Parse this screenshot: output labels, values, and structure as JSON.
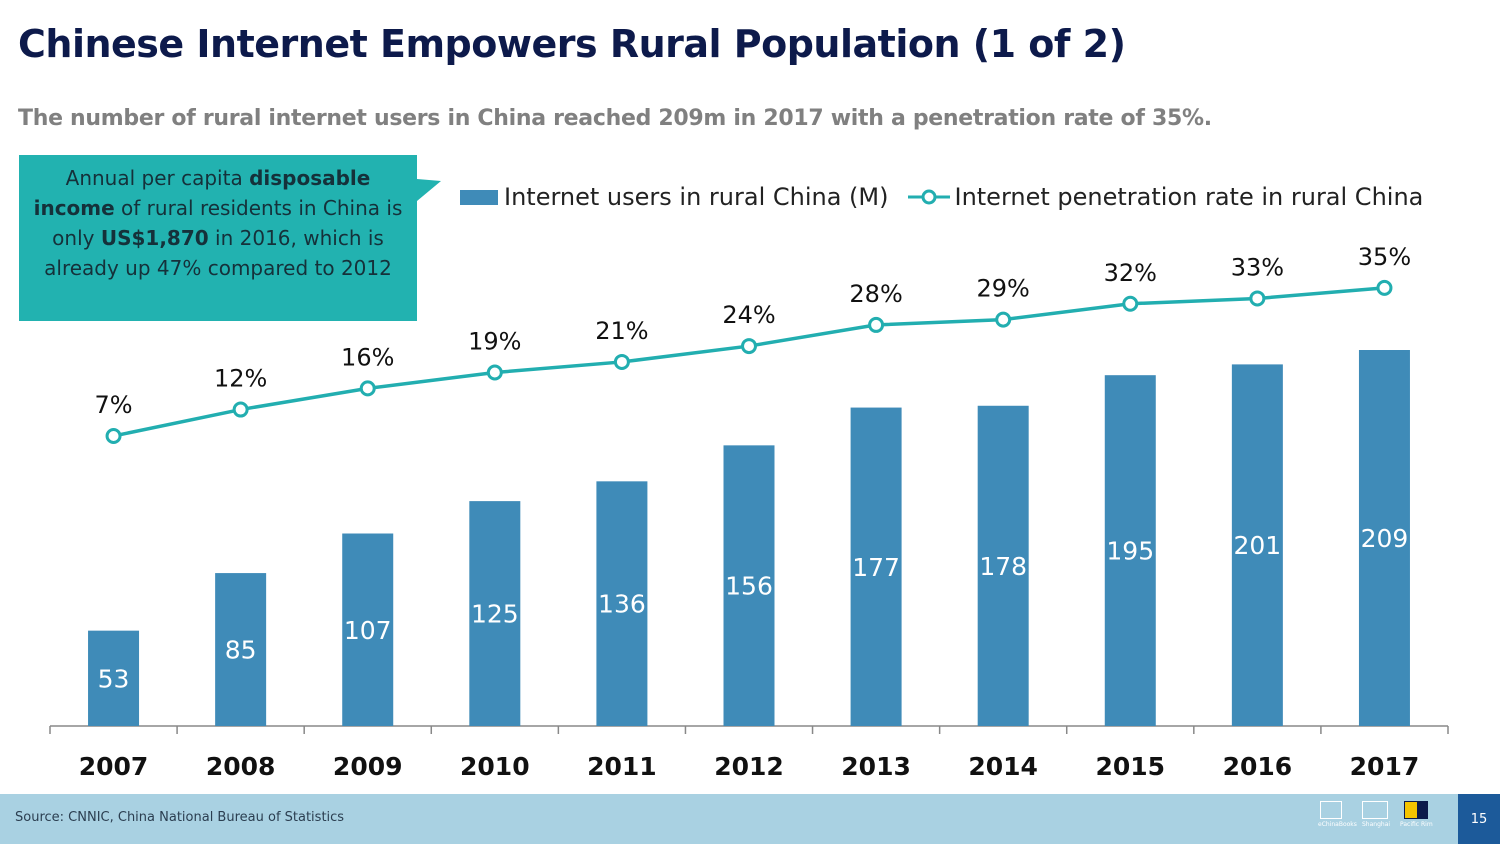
{
  "header": {
    "title": "Chinese Internet Empowers Rural Population (1 of 2)",
    "subtitle": "The number of rural internet users in China reached 209m in 2017 with a penetration rate of 35%."
  },
  "callout": {
    "part1": "Annual per capita ",
    "bold1": "disposable income",
    "part2": " of rural residents in China is only ",
    "bold2": "US$1,870",
    "part3": " in 2016, which is already up 47% compared to 2012"
  },
  "chart_data": {
    "type": "bar+line",
    "categories": [
      "2007",
      "2008",
      "2009",
      "2010",
      "2011",
      "2012",
      "2013",
      "2014",
      "2015",
      "2016",
      "2017"
    ],
    "series": [
      {
        "name": "Internet users in rural China (M)",
        "type": "bar",
        "values": [
          53,
          85,
          107,
          125,
          136,
          156,
          177,
          178,
          195,
          201,
          209
        ],
        "labels": [
          "53",
          "85",
          "107",
          "125",
          "136",
          "156",
          "177",
          "178",
          "195",
          "201",
          "209"
        ]
      },
      {
        "name": "Internet penetration rate in rural China",
        "type": "line",
        "values": [
          7,
          12,
          16,
          19,
          21,
          24,
          28,
          29,
          32,
          33,
          35
        ],
        "labels": [
          "7%",
          "12%",
          "16%",
          "19%",
          "21%",
          "24%",
          "28%",
          "29%",
          "32%",
          "33%",
          "35%"
        ]
      }
    ],
    "bar_ylim": [
      0,
      220
    ],
    "line_ylim": [
      -62,
      37.5
    ],
    "title": "",
    "xlabel": "",
    "ylabel": ""
  },
  "colors": {
    "bar": "#3f8bb8",
    "line": "#22aeb0",
    "callout_bg": "#22b2b0",
    "title": "#0d1a4b",
    "footer_bg": "#a9d1e2",
    "page_num_bg": "#1c5a9a"
  },
  "footer": {
    "source": "Source: CNNIC, China National Bureau of Statistics",
    "page_number": "15",
    "logos": [
      {
        "icon": "book-logo-icon",
        "caption": "eChinaBooks"
      },
      {
        "icon": "screen-logo-icon",
        "caption": "Shanghai"
      },
      {
        "icon": "square-logo-icon",
        "caption": "Pacific Rim"
      }
    ]
  }
}
